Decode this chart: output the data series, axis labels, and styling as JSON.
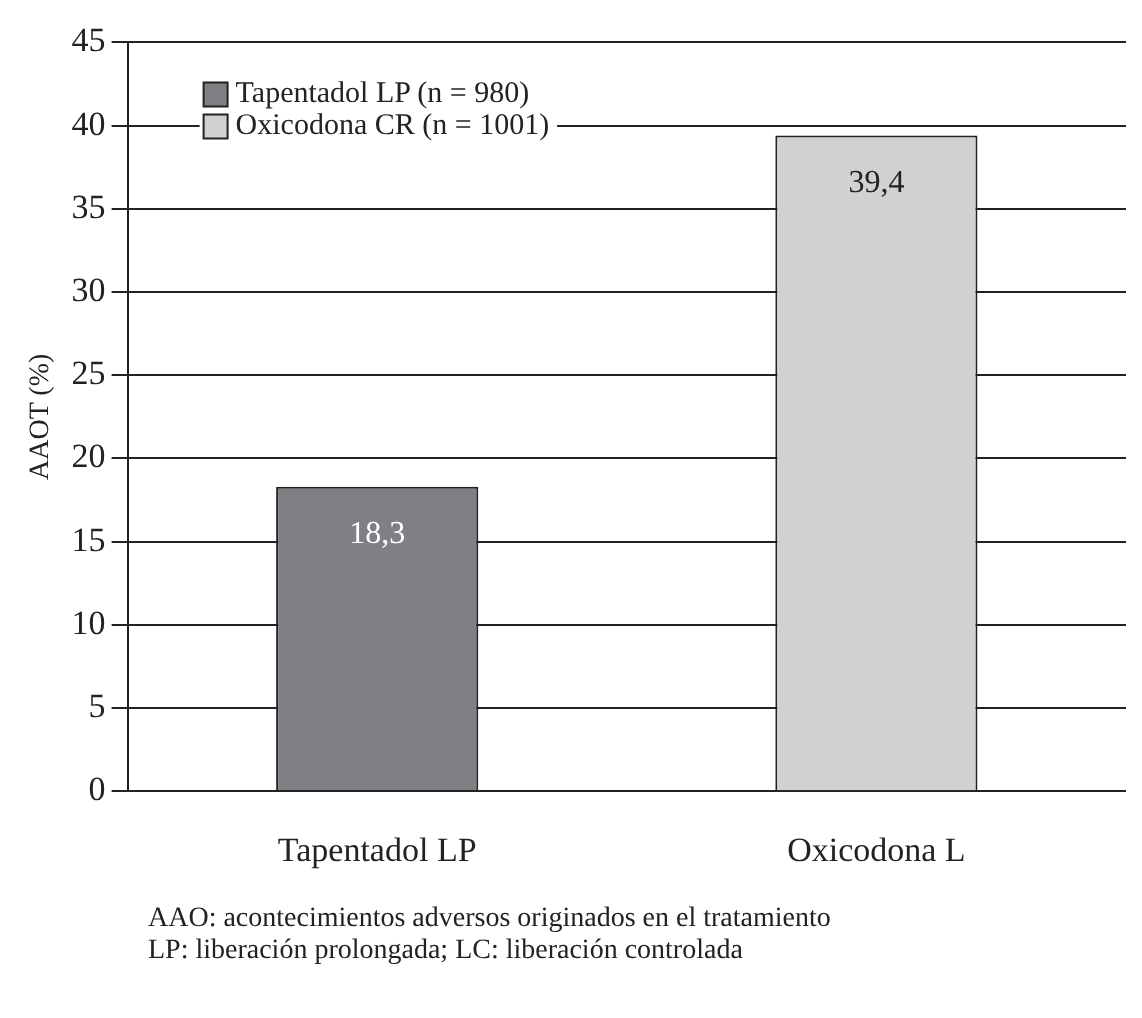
{
  "chart_data": {
    "type": "bar",
    "categories": [
      "Tapentadol LP",
      "Oxicodona L"
    ],
    "ylabel": "AAOT (%)",
    "series": [
      {
        "name": "Tapentadol LP (n = 980)",
        "color": "#7f8083",
        "values": [
          18.3,
          null
        ]
      },
      {
        "name": "Oxicodona CR (n = 1001)",
        "color": "#d0d1d3",
        "values": [
          null,
          39.4
        ]
      }
    ],
    "value_labels": [
      [
        "18,3",
        null
      ],
      [
        null,
        "39,4"
      ]
    ],
    "ylim": [
      0,
      45
    ],
    "yticks": [
      0,
      5,
      10,
      15,
      20,
      25,
      30,
      35,
      40,
      45
    ],
    "grid": "y",
    "legend": "top left",
    "annotations": [
      "AAO: acontecimientos adversos originados en el tratamiento",
      "LP: liberación prolongada; LC: liberación controlada"
    ]
  }
}
